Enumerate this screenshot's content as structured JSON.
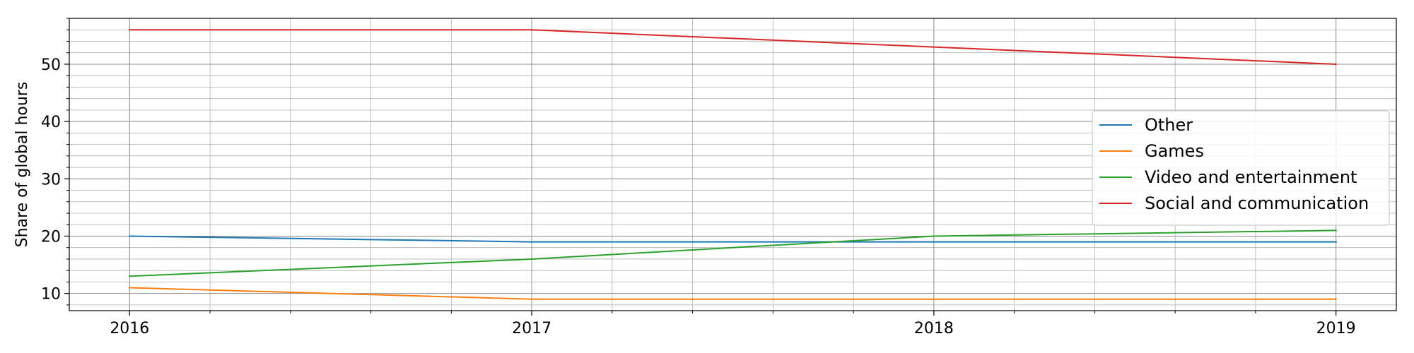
{
  "chart_data": {
    "type": "line",
    "title": "",
    "xlabel": "",
    "ylabel": "Share of global hours",
    "x": [
      2016,
      2017,
      2018,
      2019
    ],
    "x_tick_labels": [
      "2016",
      "2017",
      "2018",
      "2019"
    ],
    "xlim": [
      2015.85,
      2019.15
    ],
    "ylim": [
      7,
      58
    ],
    "y_ticks": [
      10,
      20,
      30,
      40,
      50
    ],
    "y_tick_labels": [
      "10",
      "20",
      "30",
      "40",
      "50"
    ],
    "grid": true,
    "minor_grid": true,
    "legend_position": "center-right",
    "series": [
      {
        "name": "Other",
        "color": "#1f77b4",
        "values": [
          20,
          19,
          19,
          19
        ]
      },
      {
        "name": "Games",
        "color": "#ff7f0e",
        "values": [
          11,
          9,
          9,
          9
        ]
      },
      {
        "name": "Video and entertainment",
        "color": "#2ca02c",
        "values": [
          13,
          16,
          20,
          21
        ]
      },
      {
        "name": "Social and communication",
        "color": "#d62728",
        "values": [
          56,
          56,
          53,
          50
        ]
      }
    ]
  }
}
